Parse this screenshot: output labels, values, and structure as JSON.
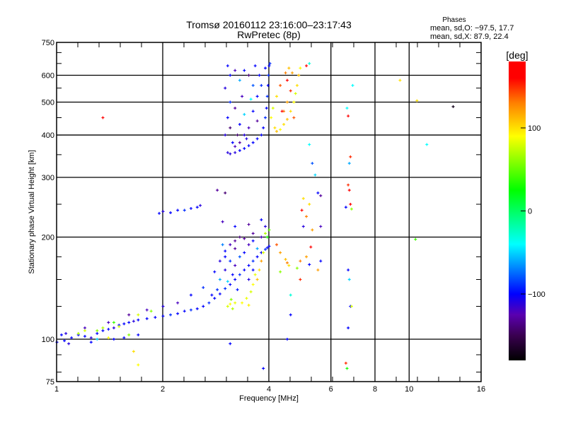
{
  "chart_data": {
    "type": "scatter",
    "title": "Tromsø 20160112 23:16:00–23:17:43",
    "subtitle": "RwPretec (8p)",
    "info": {
      "heading": "Phases",
      "line_o": "mean, sd,O: −97.5, 17.7",
      "line_x": "mean, sd,X:  87.9, 22.4"
    },
    "xlabel": "Frequency [MHz]",
    "ylabel": "Stationary phase Virtual Height [km]",
    "xscale": "log",
    "yscale": "log",
    "xlim": [
      1,
      16
    ],
    "ylim": [
      75,
      750
    ],
    "xticks": [
      1,
      2,
      4,
      6,
      8,
      10,
      16
    ],
    "xtick_labels": [
      "1",
      "2",
      "4",
      "6",
      "8",
      "10",
      "16"
    ],
    "yticks": [
      75,
      100,
      200,
      300,
      400,
      500,
      600,
      750
    ],
    "ytick_labels": [
      "75",
      "100",
      "200",
      "300",
      "400",
      "500",
      "600",
      "750"
    ],
    "x_gridlines": [
      2,
      4,
      6,
      8,
      10
    ],
    "y_gridlines": [
      100,
      200,
      300,
      400,
      500,
      600
    ],
    "grid": true,
    "colorbar": {
      "label": "[deg]",
      "range": [
        -180,
        180
      ],
      "ticks": [
        100,
        0,
        -100
      ],
      "tick_labels": [
        "100",
        "0",
        "−100"
      ],
      "stops": [
        [
          -180,
          "#000000"
        ],
        [
          -150,
          "#3a0050"
        ],
        [
          -125,
          "#5a00b0"
        ],
        [
          -100,
          "#0000ff"
        ],
        [
          -40,
          "#00ffff"
        ],
        [
          25,
          "#00ff00"
        ],
        [
          90,
          "#ffff00"
        ],
        [
          130,
          "#ff8000"
        ],
        [
          160,
          "#ff0000"
        ],
        [
          180,
          "#ff0000"
        ]
      ]
    },
    "point_format": [
      "frequency_MHz",
      "height_km",
      "phase_deg"
    ],
    "points": [
      [
        1.0,
        98,
        -100
      ],
      [
        1.03,
        103,
        -100
      ],
      [
        1.06,
        104,
        -110
      ],
      [
        1.1,
        101,
        -100
      ],
      [
        1.15,
        103,
        -100
      ],
      [
        1.2,
        102,
        -100
      ],
      [
        1.25,
        101,
        -110
      ],
      [
        1.3,
        104,
        -100
      ],
      [
        1.35,
        106,
        -100
      ],
      [
        1.4,
        107,
        -100
      ],
      [
        1.45,
        108,
        -110
      ],
      [
        1.5,
        110,
        -100
      ],
      [
        1.55,
        111,
        -100
      ],
      [
        1.6,
        112,
        -100
      ],
      [
        1.65,
        113,
        -110
      ],
      [
        1.7,
        114,
        -100
      ],
      [
        1.8,
        115,
        -100
      ],
      [
        1.9,
        116,
        -100
      ],
      [
        2.0,
        117,
        -100
      ],
      [
        2.1,
        118,
        -90
      ],
      [
        2.2,
        119,
        -100
      ],
      [
        2.3,
        121,
        -100
      ],
      [
        2.4,
        122,
        -90
      ],
      [
        2.5,
        123,
        -100
      ],
      [
        2.6,
        125,
        -100
      ],
      [
        2.7,
        128,
        -90
      ],
      [
        2.8,
        132,
        -100
      ],
      [
        2.9,
        136,
        -100
      ],
      [
        3.0,
        141,
        -90
      ],
      [
        3.1,
        145,
        -100
      ],
      [
        3.2,
        150,
        -100
      ],
      [
        3.3,
        155,
        -90
      ],
      [
        3.4,
        160,
        -100
      ],
      [
        3.5,
        165,
        -100
      ],
      [
        3.6,
        170,
        -90
      ],
      [
        3.7,
        175,
        -100
      ],
      [
        3.8,
        180,
        -100
      ],
      [
        3.9,
        184,
        -90
      ],
      [
        4.0,
        188,
        -100
      ],
      [
        3.95,
        186,
        -100
      ],
      [
        1.2,
        108,
        -120
      ],
      [
        1.4,
        112,
        -120
      ],
      [
        1.6,
        118,
        -130
      ],
      [
        1.8,
        122,
        -120
      ],
      [
        2.0,
        125,
        -110
      ],
      [
        2.2,
        128,
        -120
      ],
      [
        2.4,
        135,
        -100
      ],
      [
        2.6,
        142,
        -90
      ],
      [
        2.8,
        158,
        -100
      ],
      [
        2.9,
        170,
        -110
      ],
      [
        3.0,
        182,
        -100
      ],
      [
        3.1,
        190,
        -120
      ],
      [
        3.2,
        195,
        -130
      ],
      [
        3.4,
        198,
        -130
      ],
      [
        3.6,
        205,
        -130
      ],
      [
        3.8,
        200,
        -120
      ],
      [
        2.9,
        150,
        -60
      ],
      [
        3.0,
        160,
        -110
      ],
      [
        3.1,
        170,
        -90
      ],
      [
        3.2,
        165,
        -120
      ],
      [
        3.3,
        175,
        -80
      ],
      [
        3.0,
        175,
        -100
      ],
      [
        2.95,
        190,
        -70
      ],
      [
        3.2,
        185,
        -130
      ],
      [
        3.4,
        180,
        -100
      ],
      [
        3.5,
        190,
        -120
      ],
      [
        3.3,
        200,
        -140
      ],
      [
        2.85,
        140,
        -90
      ],
      [
        3.05,
        148,
        -50
      ],
      [
        3.15,
        155,
        -100
      ],
      [
        2.75,
        135,
        -100
      ],
      [
        3.6,
        160,
        -100
      ],
      [
        3.5,
        150,
        -110
      ],
      [
        3.25,
        140,
        -95
      ],
      [
        3.7,
        185,
        -60
      ],
      [
        3.6,
        195,
        -100
      ],
      [
        3.05,
        125,
        80
      ],
      [
        3.1,
        127,
        90
      ],
      [
        3.15,
        123,
        70
      ],
      [
        3.2,
        128,
        85
      ],
      [
        3.12,
        131,
        60
      ],
      [
        3.35,
        128,
        90
      ],
      [
        3.45,
        132,
        85
      ],
      [
        3.5,
        126,
        95
      ],
      [
        3.55,
        138,
        80
      ],
      [
        3.6,
        145,
        90
      ],
      [
        3.7,
        150,
        110
      ],
      [
        3.75,
        160,
        100
      ],
      [
        3.65,
        155,
        85
      ],
      [
        3.8,
        170,
        120
      ],
      [
        3.85,
        180,
        80
      ],
      [
        3.9,
        205,
        70
      ],
      [
        4.0,
        210,
        50
      ],
      [
        3.95,
        200,
        30
      ],
      [
        4.45,
        172,
        110
      ],
      [
        4.5,
        168,
        130
      ],
      [
        4.55,
        165,
        100
      ],
      [
        4.2,
        190,
        140
      ],
      [
        4.3,
        180,
        120
      ],
      [
        1.15,
        104,
        70
      ],
      [
        1.2,
        106,
        80
      ],
      [
        1.3,
        106,
        60
      ],
      [
        1.35,
        108,
        70
      ],
      [
        1.45,
        112,
        40
      ],
      [
        1.5,
        109,
        80
      ],
      [
        1.4,
        101,
        90
      ],
      [
        1.6,
        103,
        60
      ],
      [
        1.7,
        118,
        80
      ],
      [
        1.85,
        121,
        60
      ],
      [
        1.05,
        99,
        -100
      ],
      [
        1.08,
        97,
        -110
      ],
      [
        1.25,
        98,
        -100
      ],
      [
        1.45,
        100,
        -100
      ],
      [
        1.55,
        101,
        -100
      ],
      [
        1.7,
        103,
        -100
      ],
      [
        1.95,
        235,
        -100
      ],
      [
        2.0,
        238,
        -110
      ],
      [
        2.1,
        236,
        -100
      ],
      [
        2.2,
        240,
        -100
      ],
      [
        2.3,
        240,
        -90
      ],
      [
        2.4,
        243,
        -100
      ],
      [
        2.5,
        245,
        -100
      ],
      [
        2.55,
        248,
        -110
      ],
      [
        2.85,
        275,
        -130
      ],
      [
        3.0,
        270,
        -140
      ],
      [
        2.95,
        222,
        -120
      ],
      [
        3.2,
        215,
        -100
      ],
      [
        3.5,
        218,
        -130
      ],
      [
        3.8,
        225,
        -100
      ],
      [
        3.9,
        215,
        -110
      ],
      [
        3.05,
        355,
        -110
      ],
      [
        3.1,
        352,
        -110
      ],
      [
        3.2,
        355,
        -110
      ],
      [
        3.3,
        360,
        -100
      ],
      [
        3.4,
        365,
        -100
      ],
      [
        3.5,
        372,
        -100
      ],
      [
        3.6,
        380,
        -100
      ],
      [
        3.7,
        390,
        -100
      ],
      [
        3.8,
        400,
        -100
      ],
      [
        3.85,
        420,
        -100
      ],
      [
        3.9,
        450,
        -90
      ],
      [
        3.93,
        480,
        -100
      ],
      [
        3.95,
        520,
        -90
      ],
      [
        3.97,
        560,
        -100
      ],
      [
        3.98,
        600,
        -90
      ],
      [
        4.0,
        640,
        -100
      ],
      [
        3.9,
        630,
        -100
      ],
      [
        4.02,
        650,
        -90
      ],
      [
        3.0,
        400,
        -110
      ],
      [
        3.05,
        450,
        -100
      ],
      [
        3.1,
        500,
        -90
      ],
      [
        3.0,
        550,
        -110
      ],
      [
        3.1,
        600,
        -100
      ],
      [
        3.2,
        620,
        -120
      ],
      [
        3.3,
        580,
        -60
      ],
      [
        3.4,
        620,
        -100
      ],
      [
        3.5,
        600,
        -140
      ],
      [
        3.6,
        560,
        -80
      ],
      [
        3.7,
        520,
        -100
      ],
      [
        3.2,
        480,
        -130
      ],
      [
        3.3,
        430,
        -100
      ],
      [
        3.4,
        460,
        -50
      ],
      [
        3.5,
        420,
        -120
      ],
      [
        3.6,
        470,
        -100
      ],
      [
        3.7,
        440,
        -130
      ],
      [
        3.15,
        380,
        -100
      ],
      [
        3.25,
        400,
        -140
      ],
      [
        3.45,
        390,
        -110
      ],
      [
        3.55,
        510,
        -40
      ],
      [
        3.75,
        600,
        -100
      ],
      [
        3.8,
        560,
        -90
      ],
      [
        3.65,
        640,
        -100
      ],
      [
        3.05,
        640,
        -100
      ],
      [
        3.35,
        520,
        -120
      ],
      [
        3.1,
        420,
        -140
      ],
      [
        3.2,
        370,
        -120
      ],
      [
        3.3,
        380,
        -130
      ],
      [
        3.4,
        400,
        -110
      ],
      [
        4.15,
        420,
        100
      ],
      [
        4.2,
        410,
        110
      ],
      [
        4.3,
        415,
        90
      ],
      [
        4.4,
        430,
        100
      ],
      [
        4.5,
        445,
        110
      ],
      [
        4.6,
        470,
        100
      ],
      [
        4.7,
        500,
        90
      ],
      [
        4.75,
        530,
        80
      ],
      [
        4.8,
        560,
        100
      ],
      [
        4.85,
        600,
        110
      ],
      [
        4.9,
        630,
        90
      ],
      [
        4.4,
        470,
        130
      ],
      [
        4.5,
        500,
        120
      ],
      [
        4.6,
        540,
        150
      ],
      [
        4.3,
        560,
        140
      ],
      [
        4.45,
        610,
        130
      ],
      [
        4.55,
        630,
        110
      ],
      [
        4.1,
        480,
        80
      ],
      [
        4.2,
        520,
        100
      ],
      [
        4.05,
        450,
        90
      ],
      [
        4.65,
        610,
        120
      ],
      [
        4.7,
        450,
        140
      ],
      [
        4.35,
        470,
        170
      ],
      [
        4.5,
        580,
        160
      ],
      [
        5.1,
        640,
        160
      ],
      [
        5.2,
        650,
        -30
      ],
      [
        5.2,
        375,
        -40
      ],
      [
        5.3,
        330,
        -80
      ],
      [
        5.4,
        305,
        -50
      ],
      [
        5.5,
        270,
        -100
      ],
      [
        5.0,
        260,
        100
      ],
      [
        4.95,
        240,
        160
      ],
      [
        5.1,
        230,
        130
      ],
      [
        5.2,
        250,
        100
      ],
      [
        5.6,
        265,
        -130
      ],
      [
        5.0,
        215,
        -110
      ],
      [
        5.3,
        210,
        120
      ],
      [
        5.6,
        215,
        -120
      ],
      [
        6.65,
        480,
        -40
      ],
      [
        6.7,
        455,
        170
      ],
      [
        6.75,
        330,
        -60
      ],
      [
        6.8,
        345,
        150
      ],
      [
        6.7,
        285,
        150
      ],
      [
        6.75,
        275,
        170
      ],
      [
        6.8,
        250,
        160
      ],
      [
        6.85,
        242,
        60
      ],
      [
        6.6,
        245,
        -100
      ],
      [
        6.7,
        160,
        -100
      ],
      [
        6.75,
        150,
        -50
      ],
      [
        6.8,
        125,
        -100
      ],
      [
        6.85,
        125,
        80
      ],
      [
        6.7,
        108,
        -100
      ],
      [
        6.6,
        85,
        150
      ],
      [
        6.65,
        82,
        30
      ],
      [
        5.25,
        187,
        170
      ],
      [
        5.1,
        175,
        120
      ],
      [
        4.9,
        170,
        130
      ],
      [
        4.8,
        162,
        60
      ],
      [
        5.2,
        166,
        -100
      ],
      [
        5.6,
        170,
        -100
      ],
      [
        5.5,
        160,
        120
      ],
      [
        4.3,
        158,
        60
      ],
      [
        4.6,
        135,
        -30
      ],
      [
        4.6,
        118,
        -100
      ],
      [
        4.5,
        100,
        -100
      ],
      [
        4.9,
        150,
        150
      ],
      [
        6.9,
        560,
        -40
      ],
      [
        9.4,
        580,
        100
      ],
      [
        10.5,
        505,
        100
      ],
      [
        13.3,
        485,
        -170
      ],
      [
        11.2,
        375,
        -40
      ],
      [
        1.35,
        450,
        160
      ],
      [
        1.7,
        84,
        90
      ],
      [
        1.65,
        92,
        100
      ],
      [
        1.3,
        100,
        -50
      ],
      [
        3.85,
        82,
        -100
      ],
      [
        3.1,
        97,
        -100
      ],
      [
        10.4,
        197,
        40
      ]
    ]
  }
}
